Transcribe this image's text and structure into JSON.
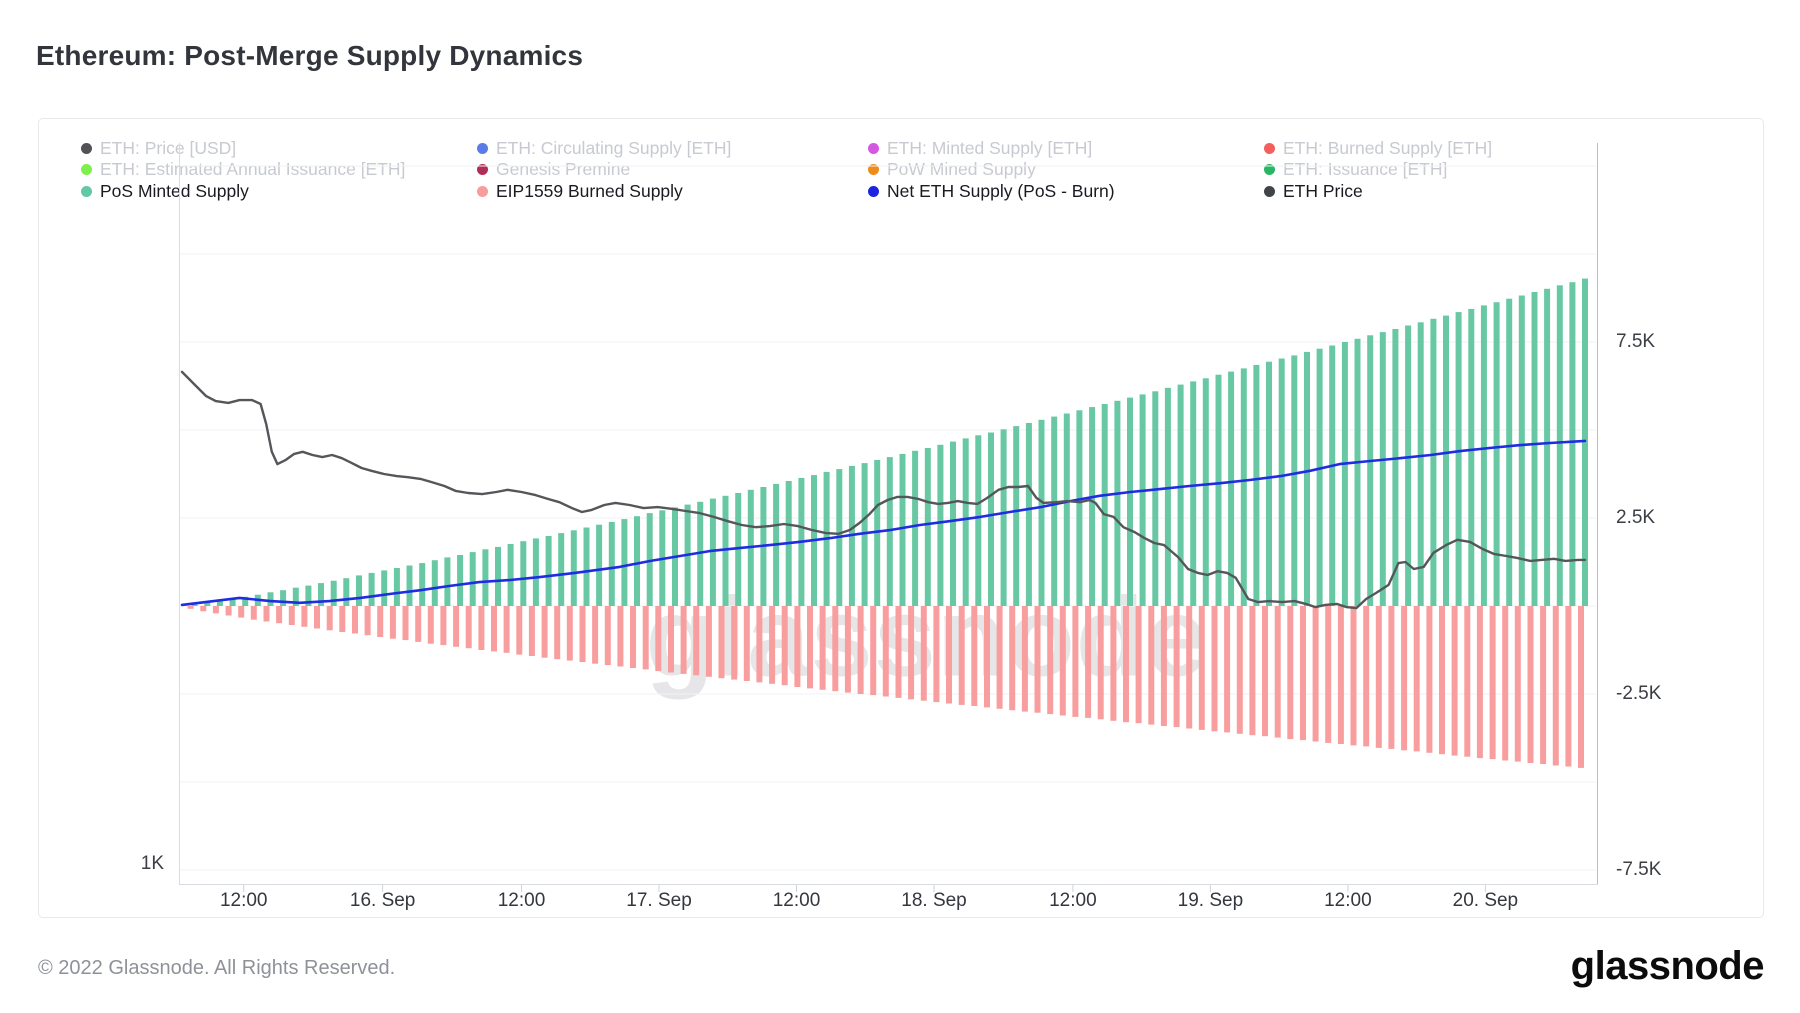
{
  "page": {
    "title": "Ethereum: Post-Merge Supply Dynamics",
    "watermark": "glassnode",
    "footer_copyright": "© 2022 Glassnode. All Rights Reserved.",
    "footer_logo": "glassnode"
  },
  "legend": {
    "rows": [
      [
        {
          "label": "ETH: Price [USD]",
          "color": "#505255",
          "enabled": false
        },
        {
          "label": "ETH: Circulating Supply [ETH]",
          "color": "#5b7ce6",
          "enabled": false
        },
        {
          "label": "ETH: Minted Supply [ETH]",
          "color": "#d35ae0",
          "enabled": false
        },
        {
          "label": "ETH: Burned Supply [ETH]",
          "color": "#f15f5f",
          "enabled": false
        }
      ],
      [
        {
          "label": "ETH: Estimated Annual Issuance [ETH]",
          "color": "#7df04d",
          "enabled": false
        },
        {
          "label": "Genesis Premine",
          "color": "#b02d55",
          "enabled": false
        },
        {
          "label": "PoW Mined Supply",
          "color": "#ef8c19",
          "enabled": false
        },
        {
          "label": "ETH: Issuance [ETH]",
          "color": "#28b665",
          "enabled": false
        }
      ],
      [
        {
          "label": "PoS Minted Supply",
          "color": "#63c8a4",
          "enabled": true
        },
        {
          "label": "EIP1559 Burned Supply",
          "color": "#f89c9c",
          "enabled": true
        },
        {
          "label": "Net ETH Supply (PoS - Burn)",
          "color": "#1c24e2",
          "enabled": true
        },
        {
          "label": "ETH Price",
          "color": "#404347",
          "enabled": true
        }
      ]
    ]
  },
  "chart_data": {
    "type": "combo",
    "title": "Ethereum: Post-Merge Supply Dynamics",
    "time_span": "15. Sep (post-merge) through 20. Sep, hourly bars",
    "units": "thousand ETH (right axis)",
    "x_ticks": [
      {
        "label": "12:00",
        "t": 0.044
      },
      {
        "label": "16. Sep",
        "t": 0.143
      },
      {
        "label": "12:00",
        "t": 0.242
      },
      {
        "label": "17. Sep",
        "t": 0.34
      },
      {
        "label": "12:00",
        "t": 0.438
      },
      {
        "label": "18. Sep",
        "t": 0.536
      },
      {
        "label": "12:00",
        "t": 0.635
      },
      {
        "label": "19. Sep",
        "t": 0.733
      },
      {
        "label": "12:00",
        "t": 0.831
      },
      {
        "label": "20. Sep",
        "t": 0.929
      }
    ],
    "y_axis_right": {
      "labels": [
        {
          "label": "7.5K",
          "v": 7.5
        },
        {
          "label": "2.5K",
          "v": 2.5
        },
        {
          "label": "-2.5K",
          "v": -2.5
        },
        {
          "label": "-7.5K",
          "v": -7.5
        }
      ],
      "gridlines_k": [
        12.5,
        10,
        7.5,
        5,
        2.5,
        0,
        -2.5,
        -5,
        -7.5
      ]
    },
    "y_axis_left": {
      "visible_label": "1K",
      "note": "hidden USD price axis, only 1K label visible"
    },
    "series": [
      {
        "name": "PoS Minted Supply",
        "type": "column",
        "color": "#68c8a4",
        "values_k": [
          0,
          0.04,
          0.09,
          0.15,
          0.2,
          0.26,
          0.32,
          0.39,
          0.45,
          0.52,
          0.58,
          0.65,
          0.72,
          0.79,
          0.87,
          0.94,
          1.01,
          1.08,
          1.15,
          1.22,
          1.3,
          1.38,
          1.45,
          1.53,
          1.61,
          1.68,
          1.76,
          1.84,
          1.92,
          1.99,
          2.07,
          2.15,
          2.23,
          2.31,
          2.39,
          2.47,
          2.55,
          2.64,
          2.72,
          2.8,
          2.88,
          2.96,
          3.05,
          3.13,
          3.21,
          3.3,
          3.38,
          3.47,
          3.55,
          3.64,
          3.72,
          3.81,
          3.89,
          3.98,
          4.06,
          4.15,
          4.23,
          4.32,
          4.41,
          4.49,
          4.58,
          4.67,
          4.76,
          4.85,
          4.93,
          5.02,
          5.11,
          5.2,
          5.29,
          5.38,
          5.47,
          5.56,
          5.65,
          5.74,
          5.83,
          5.92,
          6.01,
          6.1,
          6.2,
          6.29,
          6.38,
          6.47,
          6.57,
          6.66,
          6.75,
          6.85,
          6.94,
          7.03,
          7.12,
          7.22,
          7.31,
          7.4,
          7.5,
          7.59,
          7.69,
          7.78,
          7.87,
          7.97,
          8.06,
          8.16,
          8.25,
          8.35,
          8.44,
          8.54,
          8.63,
          8.73,
          8.82,
          8.92,
          9.01,
          9.11,
          9.2,
          9.3
        ]
      },
      {
        "name": "EIP1559 Burned Supply",
        "type": "column",
        "color": "#f89e9e",
        "values_k": [
          0,
          -0.08,
          -0.15,
          -0.21,
          -0.27,
          -0.33,
          -0.39,
          -0.44,
          -0.49,
          -0.54,
          -0.59,
          -0.64,
          -0.69,
          -0.74,
          -0.78,
          -0.83,
          -0.88,
          -0.93,
          -0.97,
          -1.02,
          -1.07,
          -1.11,
          -1.16,
          -1.2,
          -1.25,
          -1.29,
          -1.33,
          -1.38,
          -1.42,
          -1.47,
          -1.51,
          -1.55,
          -1.59,
          -1.64,
          -1.68,
          -1.72,
          -1.76,
          -1.8,
          -1.85,
          -1.89,
          -1.93,
          -1.97,
          -2.01,
          -2.05,
          -2.09,
          -2.13,
          -2.17,
          -2.21,
          -2.25,
          -2.3,
          -2.34,
          -2.38,
          -2.42,
          -2.46,
          -2.5,
          -2.53,
          -2.57,
          -2.61,
          -2.65,
          -2.69,
          -2.73,
          -2.77,
          -2.81,
          -2.84,
          -2.88,
          -2.92,
          -2.96,
          -3.0,
          -3.03,
          -3.07,
          -3.11,
          -3.15,
          -3.18,
          -3.22,
          -3.26,
          -3.3,
          -3.33,
          -3.37,
          -3.41,
          -3.44,
          -3.48,
          -3.52,
          -3.56,
          -3.59,
          -3.63,
          -3.67,
          -3.7,
          -3.74,
          -3.78,
          -3.81,
          -3.85,
          -3.89,
          -3.92,
          -3.96,
          -3.99,
          -4.03,
          -4.06,
          -4.1,
          -4.13,
          -4.17,
          -4.21,
          -4.25,
          -4.28,
          -4.32,
          -4.35,
          -4.39,
          -4.42,
          -4.46,
          -4.49,
          -4.53,
          -4.56,
          -4.6
        ]
      },
      {
        "name": "Net ETH Supply (PoS - Burn)",
        "type": "line",
        "color": "#1f2ce2",
        "points_tv": [
          [
            0,
            0.03
          ],
          [
            0.041,
            0.23
          ],
          [
            0.063,
            0.14
          ],
          [
            0.084,
            0.09
          ],
          [
            0.105,
            0.14
          ],
          [
            0.127,
            0.23
          ],
          [
            0.148,
            0.34
          ],
          [
            0.17,
            0.45
          ],
          [
            0.191,
            0.57
          ],
          [
            0.212,
            0.68
          ],
          [
            0.234,
            0.74
          ],
          [
            0.255,
            0.82
          ],
          [
            0.28,
            0.94
          ],
          [
            0.312,
            1.11
          ],
          [
            0.334,
            1.28
          ],
          [
            0.355,
            1.42
          ],
          [
            0.376,
            1.56
          ],
          [
            0.398,
            1.65
          ],
          [
            0.419,
            1.73
          ],
          [
            0.44,
            1.82
          ],
          [
            0.462,
            1.93
          ],
          [
            0.483,
            2.05
          ],
          [
            0.505,
            2.16
          ],
          [
            0.526,
            2.3
          ],
          [
            0.547,
            2.41
          ],
          [
            0.569,
            2.53
          ],
          [
            0.59,
            2.67
          ],
          [
            0.612,
            2.81
          ],
          [
            0.633,
            2.98
          ],
          [
            0.654,
            3.13
          ],
          [
            0.676,
            3.24
          ],
          [
            0.697,
            3.32
          ],
          [
            0.718,
            3.41
          ],
          [
            0.74,
            3.49
          ],
          [
            0.761,
            3.58
          ],
          [
            0.783,
            3.69
          ],
          [
            0.804,
            3.84
          ],
          [
            0.825,
            4.03
          ],
          [
            0.847,
            4.12
          ],
          [
            0.868,
            4.2
          ],
          [
            0.89,
            4.29
          ],
          [
            0.911,
            4.4
          ],
          [
            0.932,
            4.49
          ],
          [
            0.954,
            4.57
          ],
          [
            0.975,
            4.63
          ],
          [
            1,
            4.69
          ]
        ]
      },
      {
        "name": "ETH Price",
        "type": "line",
        "color": "#54565a",
        "axis": "hidden-left-usd",
        "points_tv": [
          [
            0,
            6.65
          ],
          [
            0.01,
            6.25
          ],
          [
            0.017,
            5.97
          ],
          [
            0.024,
            5.82
          ],
          [
            0.033,
            5.77
          ],
          [
            0.041,
            5.85
          ],
          [
            0.05,
            5.85
          ],
          [
            0.056,
            5.74
          ],
          [
            0.06,
            5.17
          ],
          [
            0.064,
            4.38
          ],
          [
            0.068,
            4.03
          ],
          [
            0.074,
            4.15
          ],
          [
            0.08,
            4.32
          ],
          [
            0.086,
            4.38
          ],
          [
            0.093,
            4.29
          ],
          [
            0.1,
            4.23
          ],
          [
            0.107,
            4.29
          ],
          [
            0.114,
            4.2
          ],
          [
            0.121,
            4.06
          ],
          [
            0.128,
            3.92
          ],
          [
            0.135,
            3.84
          ],
          [
            0.144,
            3.75
          ],
          [
            0.153,
            3.69
          ],
          [
            0.161,
            3.66
          ],
          [
            0.17,
            3.61
          ],
          [
            0.178,
            3.52
          ],
          [
            0.187,
            3.41
          ],
          [
            0.195,
            3.27
          ],
          [
            0.204,
            3.21
          ],
          [
            0.214,
            3.18
          ],
          [
            0.224,
            3.24
          ],
          [
            0.232,
            3.3
          ],
          [
            0.242,
            3.24
          ],
          [
            0.252,
            3.15
          ],
          [
            0.261,
            3.04
          ],
          [
            0.269,
            2.95
          ],
          [
            0.278,
            2.78
          ],
          [
            0.285,
            2.67
          ],
          [
            0.292,
            2.73
          ],
          [
            0.301,
            2.87
          ],
          [
            0.309,
            2.93
          ],
          [
            0.319,
            2.87
          ],
          [
            0.329,
            2.78
          ],
          [
            0.339,
            2.81
          ],
          [
            0.349,
            2.76
          ],
          [
            0.359,
            2.7
          ],
          [
            0.369,
            2.64
          ],
          [
            0.379,
            2.53
          ],
          [
            0.389,
            2.41
          ],
          [
            0.399,
            2.3
          ],
          [
            0.409,
            2.24
          ],
          [
            0.419,
            2.27
          ],
          [
            0.429,
            2.33
          ],
          [
            0.439,
            2.27
          ],
          [
            0.449,
            2.16
          ],
          [
            0.459,
            2.07
          ],
          [
            0.468,
            2.05
          ],
          [
            0.476,
            2.16
          ],
          [
            0.483,
            2.36
          ],
          [
            0.49,
            2.61
          ],
          [
            0.496,
            2.87
          ],
          [
            0.503,
            3.01
          ],
          [
            0.51,
            3.1
          ],
          [
            0.517,
            3.1
          ],
          [
            0.525,
            3.04
          ],
          [
            0.532,
            2.95
          ],
          [
            0.539,
            2.9
          ],
          [
            0.546,
            2.93
          ],
          [
            0.553,
            2.98
          ],
          [
            0.56,
            2.93
          ],
          [
            0.567,
            2.9
          ],
          [
            0.574,
            3.07
          ],
          [
            0.582,
            3.3
          ],
          [
            0.589,
            3.38
          ],
          [
            0.596,
            3.38
          ],
          [
            0.603,
            3.41
          ],
          [
            0.609,
            3.07
          ],
          [
            0.614,
            2.93
          ],
          [
            0.623,
            2.95
          ],
          [
            0.631,
            2.98
          ],
          [
            0.64,
            2.95
          ],
          [
            0.647,
            3.01
          ],
          [
            0.651,
            2.93
          ],
          [
            0.657,
            2.61
          ],
          [
            0.664,
            2.53
          ],
          [
            0.671,
            2.24
          ],
          [
            0.679,
            2.1
          ],
          [
            0.686,
            1.93
          ],
          [
            0.693,
            1.79
          ],
          [
            0.7,
            1.73
          ],
          [
            0.71,
            1.39
          ],
          [
            0.717,
            1.05
          ],
          [
            0.724,
            0.94
          ],
          [
            0.731,
            0.88
          ],
          [
            0.738,
            0.99
          ],
          [
            0.745,
            0.94
          ],
          [
            0.751,
            0.8
          ],
          [
            0.76,
            0.2
          ],
          [
            0.767,
            0.11
          ],
          [
            0.775,
            0.14
          ],
          [
            0.784,
            0.11
          ],
          [
            0.793,
            0.14
          ],
          [
            0.801,
            0.06
          ],
          [
            0.808,
            -0.03
          ],
          [
            0.815,
            0.03
          ],
          [
            0.823,
            0.06
          ],
          [
            0.83,
            -0.03
          ],
          [
            0.837,
            -0.06
          ],
          [
            0.844,
            0.2
          ],
          [
            0.851,
            0.37
          ],
          [
            0.86,
            0.6
          ],
          [
            0.867,
            1.22
          ],
          [
            0.872,
            1.25
          ],
          [
            0.878,
            1.05
          ],
          [
            0.885,
            1.11
          ],
          [
            0.892,
            1.51
          ],
          [
            0.901,
            1.73
          ],
          [
            0.909,
            1.88
          ],
          [
            0.918,
            1.82
          ],
          [
            0.927,
            1.62
          ],
          [
            0.935,
            1.48
          ],
          [
            0.944,
            1.42
          ],
          [
            0.952,
            1.36
          ],
          [
            0.961,
            1.28
          ],
          [
            0.969,
            1.31
          ],
          [
            0.978,
            1.34
          ],
          [
            0.986,
            1.28
          ],
          [
            0.995,
            1.31
          ],
          [
            1,
            1.31
          ]
        ]
      }
    ]
  },
  "layout_colors": {
    "grid": "#f1f2f5",
    "axis_left_line": "#d9dce2",
    "axis_right_line": "#b3bcf0",
    "axis_bottom_line": "#d9dce2",
    "tick": "#cfd2d8"
  }
}
